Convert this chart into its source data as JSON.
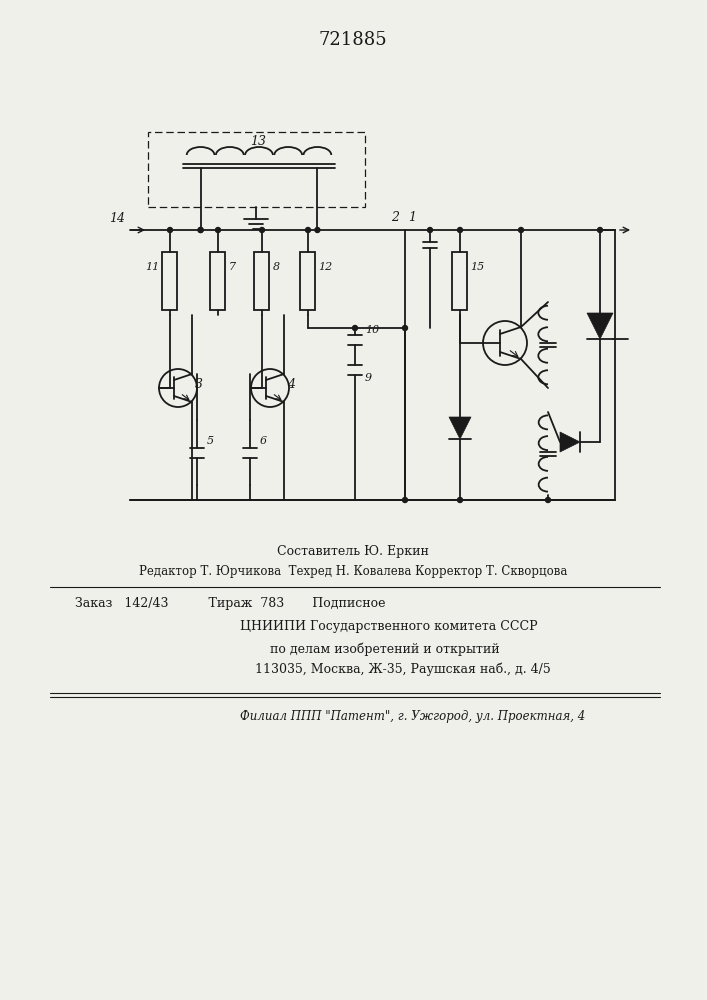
{
  "title_number": "721885",
  "bg_color": "#f0f0eb",
  "line_color": "#1a1a1a",
  "text_color": "#1a1a1a",
  "footer_line1": "Составитель Ю. Еркин",
  "footer_line2": "Редактор Т. Юрчикова  Техред Н. Ковалева Корректор Т. Скворцова",
  "footer_line3": "Заказ   142/43          Тираж  783       Подписное",
  "footer_line4": "ЦНИИПИ Государственного комитета СССР",
  "footer_line5": "по делам изобретений и открытий",
  "footer_line6": "113035, Москва, Ж-35, Раушская наб., д. 4/5",
  "footer_line7": "Филиал ППП \"Патент\", г. Ужгород, ул. Проектная, 4"
}
